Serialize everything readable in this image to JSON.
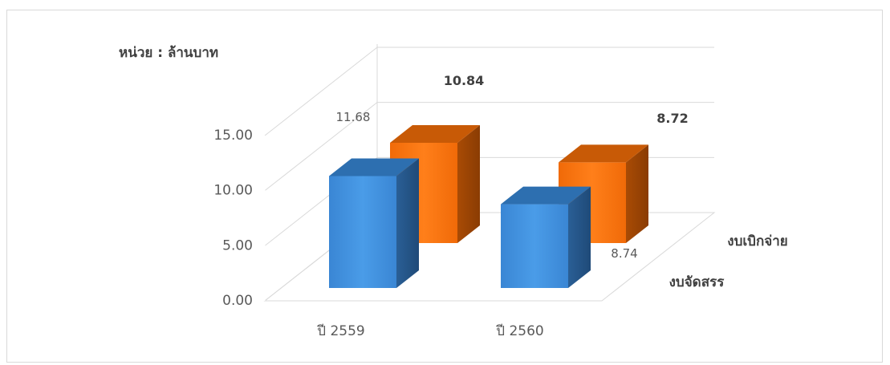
{
  "chart_data": {
    "type": "bar",
    "subtype": "3d-clustered-depth",
    "unit_label": "หน่วย : ล้านบาท",
    "categories": [
      "ปี 2559",
      "ปี 2560"
    ],
    "series": [
      {
        "name": "งบจัดสรร",
        "values": [
          11.68,
          8.74
        ],
        "labels": [
          "11.68",
          "8.74"
        ],
        "color": "#3c8fde"
      },
      {
        "name": "งบเบิกจ่าย",
        "values": [
          10.84,
          8.72
        ],
        "labels": [
          "10.84",
          "8.72"
        ],
        "color": "#f7720a"
      }
    ],
    "y_ticks": [
      "0.00",
      "5.00",
      "10.00",
      "15.00"
    ],
    "ylim": [
      0,
      15
    ],
    "grid": true
  }
}
